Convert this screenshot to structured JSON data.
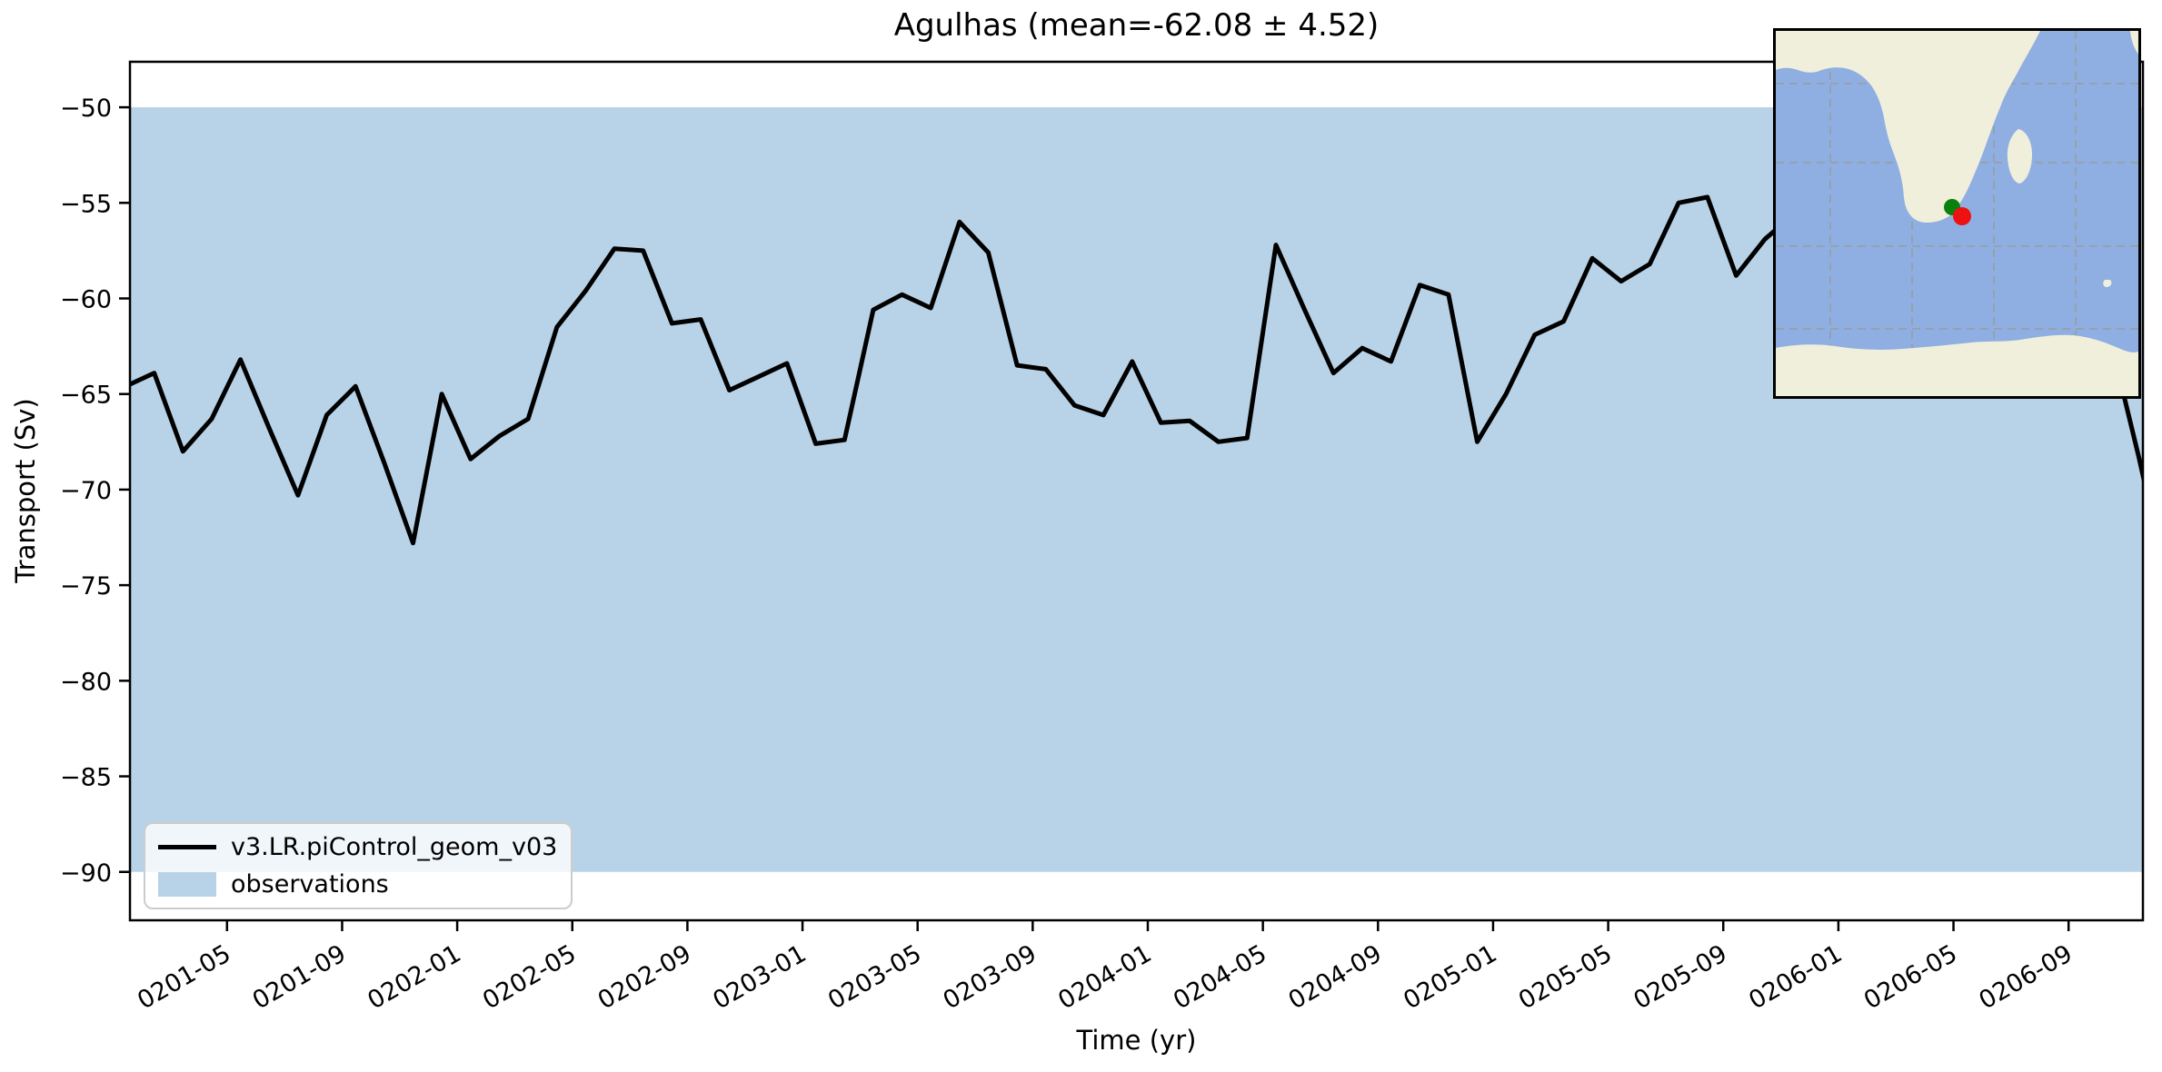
{
  "title": "Agulhas (mean=-62.08 ± 4.52)",
  "xlabel": "Time (yr)",
  "ylabel": "Transport (Sv)",
  "legend": {
    "line_label": "v3.LR.piControl_geom_v03",
    "band_label": "observations"
  },
  "colors": {
    "line": "#000000",
    "band": "#b8d3e7",
    "map_ocean": "#8fafe2",
    "map_land": "#f0efdb",
    "map_grid": "#9a9a95",
    "dot_green": "#0b800b",
    "dot_red": "#ee1111"
  },
  "chart_data": {
    "type": "line",
    "title": "Agulhas (mean=-62.08 ± 4.52)",
    "xlabel": "Time (yr)",
    "ylabel": "Transport (Sv)",
    "start_month": "0201-01",
    "months_per_point": 1,
    "ylim": [
      -92.53,
      -47.62
    ],
    "y_ticks": [
      -50,
      -55,
      -60,
      -65,
      -70,
      -75,
      -80,
      -85,
      -90
    ],
    "x_tick_labels": [
      "0201-05",
      "0201-09",
      "0202-01",
      "0202-05",
      "0202-09",
      "0203-01",
      "0203-05",
      "0203-09",
      "0204-01",
      "0204-05",
      "0204-09",
      "0205-01",
      "0205-05",
      "0205-09",
      "0206-01",
      "0206-05",
      "0206-09"
    ],
    "grid": false,
    "legend_position": "lower left",
    "series": [
      {
        "name": "v3.LR.piControl_geom_v03",
        "values": [
          -64.6,
          -63.9,
          -68.0,
          -66.3,
          -63.2,
          -66.8,
          -70.3,
          -66.1,
          -64.6,
          -68.6,
          -72.8,
          -65.0,
          -68.4,
          -67.2,
          -66.3,
          -61.5,
          -59.6,
          -57.4,
          -57.5,
          -61.3,
          -61.1,
          -64.8,
          -64.1,
          -63.4,
          -67.6,
          -67.4,
          -60.6,
          -59.8,
          -60.5,
          -56.0,
          -57.6,
          -63.5,
          -63.7,
          -65.6,
          -66.1,
          -63.3,
          -66.5,
          -66.4,
          -67.5,
          -67.3,
          -57.2,
          -60.6,
          -63.9,
          -62.6,
          -63.3,
          -59.3,
          -59.8,
          -67.5,
          -65.0,
          -61.9,
          -61.2,
          -57.9,
          -59.1,
          -58.2,
          -55.0,
          -54.7,
          -58.8,
          -56.9,
          -55.6,
          -56.8,
          -55.4,
          -57.9,
          -56.6,
          -58.7,
          -57.3,
          -59.4,
          -58.1,
          -60.3,
          -59.0,
          -62.1,
          -68.3,
          -75.0
        ]
      }
    ],
    "band": {
      "name": "observations",
      "from": -90,
      "to": -50
    }
  },
  "inset_map": {
    "region": "southern-africa",
    "dots": [
      {
        "name": "model-section-point",
        "color_key": "dot_green"
      },
      {
        "name": "observation-point",
        "color_key": "dot_red"
      }
    ]
  }
}
